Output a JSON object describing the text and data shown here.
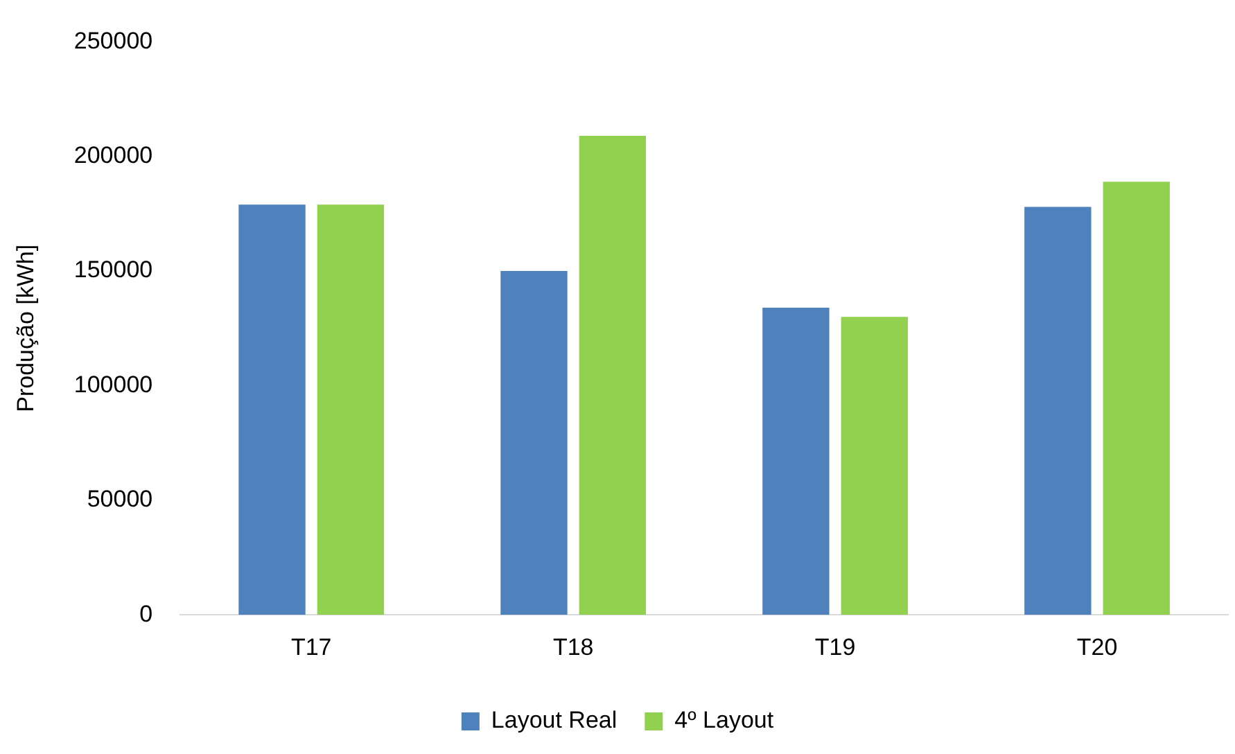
{
  "chart_data": {
    "type": "bar",
    "ylabel": "Produção [kWh]",
    "categories": [
      "T17",
      "T18",
      "T19",
      "T20"
    ],
    "series": [
      {
        "name": "Layout Real",
        "color": "#4f81bd",
        "values": [
          179000,
          150000,
          134000,
          178000
        ]
      },
      {
        "name": "4º Layout",
        "color": "#92d050",
        "values": [
          179000,
          209000,
          130000,
          189000
        ]
      }
    ],
    "ylim": [
      0,
      250000
    ],
    "yticks": [
      0,
      50000,
      100000,
      150000,
      200000,
      250000
    ],
    "grid": false,
    "legend": "bottom"
  }
}
